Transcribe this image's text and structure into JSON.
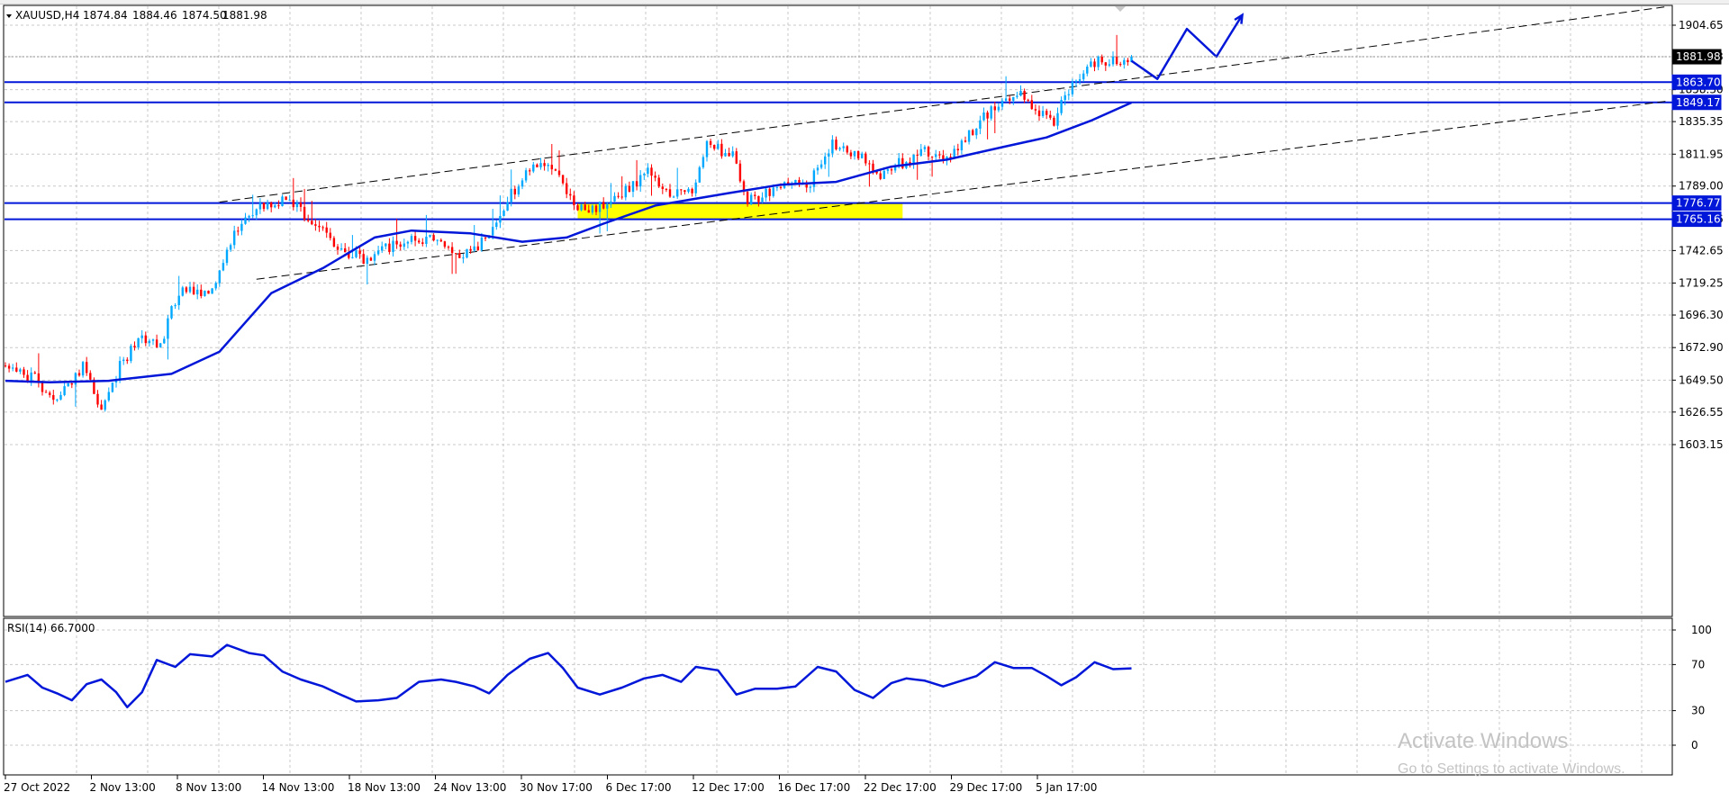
{
  "header": {
    "symbol": "XAUUSD,H4",
    "open": "1874.84",
    "high": "1884.46",
    "low": "1874.50",
    "close": "1881.98"
  },
  "rsi_header": "RSI(14) 66.7000",
  "watermark": {
    "title": "Activate Windows",
    "subtitle": "Go to Settings to activate Windows."
  },
  "colors": {
    "bull": "#00a8ff",
    "bear": "#ff0000",
    "ma": "#0016d8",
    "level": "#0016d8",
    "zone": "#ffff00",
    "grid": "#c8c8c8",
    "rsi": "#0016d8"
  },
  "chart_data": [
    {
      "type": "candlestick",
      "title": "XAUUSD,H4",
      "y_ticks": [
        "1904.65",
        "1881.98",
        "1858.30",
        "1835.35",
        "1811.95",
        "1789.00",
        "1765.16",
        "1742.65",
        "1719.25",
        "1696.30",
        "1672.90",
        "1649.50",
        "1626.55",
        "1603.15"
      ],
      "ylim": [
        1596,
        1918
      ],
      "x_ticks": [
        "27 Oct 2022",
        "2 Nov 13:00",
        "8 Nov 13:00",
        "14 Nov 13:00",
        "18 Nov 13:00",
        "24 Nov 13:00",
        "30 Nov 17:00",
        "6 Dec 17:00",
        "12 Dec 17:00",
        "16 Dec 17:00",
        "22 Dec 17:00",
        "29 Dec 17:00",
        "5 Jan 17:00"
      ],
      "grid": true,
      "ohlc_summary": {
        "open": 1874.84,
        "high": 1884.46,
        "low": 1874.5,
        "close": 1881.98
      },
      "key_path": [
        {
          "bar": 0,
          "price": 1660
        },
        {
          "bar": 8,
          "price": 1650
        },
        {
          "bar": 14,
          "price": 1636
        },
        {
          "bar": 21,
          "price": 1660
        },
        {
          "bar": 26,
          "price": 1630
        },
        {
          "bar": 31,
          "price": 1660
        },
        {
          "bar": 37,
          "price": 1681
        },
        {
          "bar": 42,
          "price": 1675
        },
        {
          "bar": 47,
          "price": 1714
        },
        {
          "bar": 55,
          "price": 1710
        },
        {
          "bar": 62,
          "price": 1755
        },
        {
          "bar": 68,
          "price": 1772
        },
        {
          "bar": 76,
          "price": 1780
        },
        {
          "bar": 83,
          "price": 1763
        },
        {
          "bar": 90,
          "price": 1744
        },
        {
          "bar": 98,
          "price": 1735
        },
        {
          "bar": 104,
          "price": 1745
        },
        {
          "bar": 110,
          "price": 1753
        },
        {
          "bar": 117,
          "price": 1748
        },
        {
          "bar": 123,
          "price": 1740
        },
        {
          "bar": 130,
          "price": 1750
        },
        {
          "bar": 137,
          "price": 1783
        },
        {
          "bar": 143,
          "price": 1805
        },
        {
          "bar": 149,
          "price": 1803
        },
        {
          "bar": 154,
          "price": 1775
        },
        {
          "bar": 160,
          "price": 1773
        },
        {
          "bar": 167,
          "price": 1784
        },
        {
          "bar": 174,
          "price": 1798
        },
        {
          "bar": 180,
          "price": 1785
        },
        {
          "bar": 186,
          "price": 1783
        },
        {
          "bar": 190,
          "price": 1819
        },
        {
          "bar": 197,
          "price": 1810
        },
        {
          "bar": 201,
          "price": 1778
        },
        {
          "bar": 206,
          "price": 1783
        },
        {
          "bar": 212,
          "price": 1790
        },
        {
          "bar": 218,
          "price": 1792
        },
        {
          "bar": 224,
          "price": 1818
        },
        {
          "bar": 231,
          "price": 1813
        },
        {
          "bar": 236,
          "price": 1796
        },
        {
          "bar": 243,
          "price": 1806
        },
        {
          "bar": 249,
          "price": 1814
        },
        {
          "bar": 255,
          "price": 1808
        },
        {
          "bar": 262,
          "price": 1830
        },
        {
          "bar": 268,
          "price": 1847
        },
        {
          "bar": 274,
          "price": 1858
        },
        {
          "bar": 279,
          "price": 1843
        },
        {
          "bar": 284,
          "price": 1836
        },
        {
          "bar": 289,
          "price": 1864
        },
        {
          "bar": 294,
          "price": 1878
        },
        {
          "bar": 300,
          "price": 1879
        },
        {
          "bar": 305,
          "price": 1881.98
        }
      ],
      "moving_average": [
        {
          "bar": 0,
          "price": 1649
        },
        {
          "bar": 12,
          "price": 1648
        },
        {
          "bar": 28,
          "price": 1649
        },
        {
          "bar": 45,
          "price": 1654
        },
        {
          "bar": 58,
          "price": 1670
        },
        {
          "bar": 72,
          "price": 1712
        },
        {
          "bar": 86,
          "price": 1730
        },
        {
          "bar": 100,
          "price": 1752
        },
        {
          "bar": 110,
          "price": 1757
        },
        {
          "bar": 126,
          "price": 1755
        },
        {
          "bar": 140,
          "price": 1749
        },
        {
          "bar": 152,
          "price": 1752
        },
        {
          "bar": 162,
          "price": 1762
        },
        {
          "bar": 176,
          "price": 1775
        },
        {
          "bar": 196,
          "price": 1784
        },
        {
          "bar": 210,
          "price": 1790
        },
        {
          "bar": 225,
          "price": 1792
        },
        {
          "bar": 240,
          "price": 1803
        },
        {
          "bar": 255,
          "price": 1808
        },
        {
          "bar": 270,
          "price": 1817
        },
        {
          "bar": 282,
          "price": 1824
        },
        {
          "bar": 294,
          "price": 1836
        },
        {
          "bar": 305,
          "price": 1849
        }
      ],
      "horizontal_levels": [
        {
          "label": "1863.70",
          "price": 1863.7
        },
        {
          "label": "1849.17",
          "price": 1849.17
        },
        {
          "label": "1776.77",
          "price": 1776.77
        },
        {
          "label": "1765.16",
          "price": 1765.16
        }
      ],
      "current_price_label": "1881.98",
      "zone": {
        "bar_start": 155,
        "bar_end": 243,
        "price_low": 1765.16,
        "price_high": 1776.77
      },
      "channel_upper": [
        {
          "bar": 58,
          "price": 1777.5
        },
        {
          "bar": 450,
          "price": 1918
        }
      ],
      "channel_lower": [
        {
          "bar": 68,
          "price": 1722
        },
        {
          "bar": 450,
          "price": 1850
        }
      ],
      "projection_path": [
        {
          "bar": 305,
          "price": 1879
        },
        {
          "bar": 312,
          "price": 1866
        },
        {
          "bar": 320,
          "price": 1902
        },
        {
          "bar": 328,
          "price": 1882
        },
        {
          "bar": 335,
          "price": 1912
        }
      ]
    },
    {
      "type": "line",
      "title": "RSI(14) 66.7000",
      "y_ticks": [
        "100",
        "70",
        "30",
        "0"
      ],
      "ylim": [
        0,
        100
      ],
      "series": [
        {
          "values": [
            {
              "bar": 0,
              "value": 55
            },
            {
              "bar": 6,
              "value": 61
            },
            {
              "bar": 10,
              "value": 50
            },
            {
              "bar": 14,
              "value": 45
            },
            {
              "bar": 18,
              "value": 39
            },
            {
              "bar": 22,
              "value": 53
            },
            {
              "bar": 26,
              "value": 57
            },
            {
              "bar": 30,
              "value": 46
            },
            {
              "bar": 33,
              "value": 33
            },
            {
              "bar": 37,
              "value": 46
            },
            {
              "bar": 41,
              "value": 74
            },
            {
              "bar": 46,
              "value": 68
            },
            {
              "bar": 50,
              "value": 79
            },
            {
              "bar": 56,
              "value": 77
            },
            {
              "bar": 60,
              "value": 87
            },
            {
              "bar": 66,
              "value": 80
            },
            {
              "bar": 70,
              "value": 78
            },
            {
              "bar": 75,
              "value": 64
            },
            {
              "bar": 80,
              "value": 57
            },
            {
              "bar": 86,
              "value": 51
            },
            {
              "bar": 90,
              "value": 45
            },
            {
              "bar": 95,
              "value": 38
            },
            {
              "bar": 101,
              "value": 39
            },
            {
              "bar": 106,
              "value": 41
            },
            {
              "bar": 112,
              "value": 55
            },
            {
              "bar": 118,
              "value": 57
            },
            {
              "bar": 122,
              "value": 55
            },
            {
              "bar": 127,
              "value": 51
            },
            {
              "bar": 131,
              "value": 45
            },
            {
              "bar": 136,
              "value": 61
            },
            {
              "bar": 142,
              "value": 75
            },
            {
              "bar": 147,
              "value": 80
            },
            {
              "bar": 151,
              "value": 67
            },
            {
              "bar": 155,
              "value": 50
            },
            {
              "bar": 161,
              "value": 44
            },
            {
              "bar": 167,
              "value": 50
            },
            {
              "bar": 173,
              "value": 58
            },
            {
              "bar": 178,
              "value": 61
            },
            {
              "bar": 183,
              "value": 55
            },
            {
              "bar": 187,
              "value": 68
            },
            {
              "bar": 193,
              "value": 65
            },
            {
              "bar": 198,
              "value": 44
            },
            {
              "bar": 203,
              "value": 49
            },
            {
              "bar": 209,
              "value": 49
            },
            {
              "bar": 214,
              "value": 51
            },
            {
              "bar": 220,
              "value": 68
            },
            {
              "bar": 225,
              "value": 64
            },
            {
              "bar": 230,
              "value": 48
            },
            {
              "bar": 235,
              "value": 41
            },
            {
              "bar": 240,
              "value": 54
            },
            {
              "bar": 244,
              "value": 58
            },
            {
              "bar": 249,
              "value": 56
            },
            {
              "bar": 254,
              "value": 51
            },
            {
              "bar": 258,
              "value": 55
            },
            {
              "bar": 263,
              "value": 60
            },
            {
              "bar": 268,
              "value": 72
            },
            {
              "bar": 273,
              "value": 67
            },
            {
              "bar": 278,
              "value": 67
            },
            {
              "bar": 282,
              "value": 60
            },
            {
              "bar": 286,
              "value": 52
            },
            {
              "bar": 290,
              "value": 59
            },
            {
              "bar": 295,
              "value": 72
            },
            {
              "bar": 300,
              "value": 66
            },
            {
              "bar": 305,
              "value": 66.7
            }
          ]
        }
      ]
    }
  ]
}
